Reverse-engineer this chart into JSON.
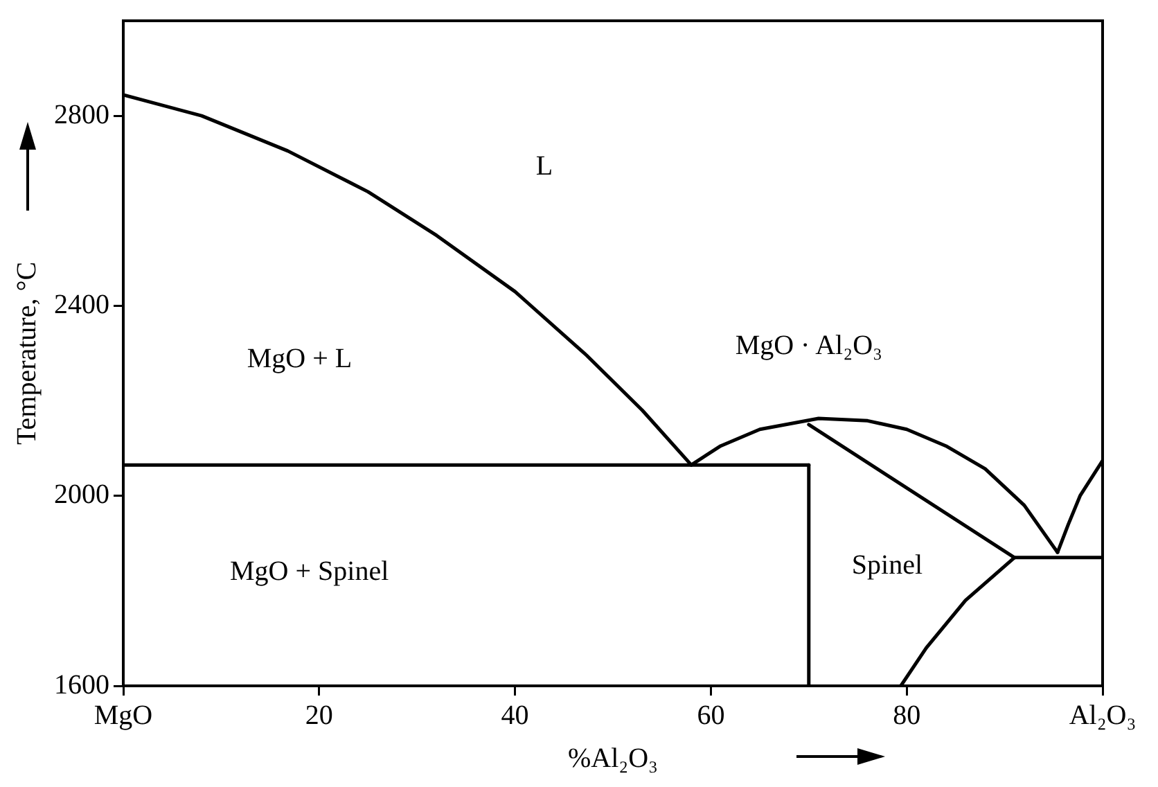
{
  "chart_data": {
    "type": "line",
    "xlabel": "%Al₂O₃",
    "ylabel": "Temperature, °C",
    "xlim": [
      0,
      100
    ],
    "ylim": [
      1600,
      3000
    ],
    "xticks": [
      {
        "value": 0,
        "label": "MgO"
      },
      20,
      40,
      60,
      80,
      {
        "value": 100,
        "label": "Al₂O₃"
      }
    ],
    "yticks": [
      1600,
      2000,
      2400,
      2800
    ],
    "grid": false,
    "legend": false,
    "marker": "none",
    "line_style": "solid",
    "series": [
      {
        "color": "#000000",
        "x": [
          0,
          8,
          16.8,
          25,
          32,
          40,
          47.3,
          53,
          58
        ],
        "values": [
          2844,
          2800,
          2726,
          2640,
          2548,
          2430,
          2296,
          2180,
          2065
        ]
      },
      {
        "color": "#000000",
        "x": [
          58,
          61,
          65,
          71,
          76,
          80,
          84,
          88,
          92,
          95.4
        ],
        "values": [
          2065,
          2105,
          2140,
          2163,
          2158,
          2140,
          2105,
          2057,
          1980,
          1881
        ]
      },
      {
        "color": "#000000",
        "x": [
          0,
          70
        ],
        "values": [
          2065,
          2065
        ]
      },
      {
        "color": "#000000",
        "x": [
          70,
          70
        ],
        "values": [
          2065,
          1600
        ]
      },
      {
        "color": "#000000",
        "x": [
          70,
          91
        ],
        "values": [
          2150,
          1870
        ]
      },
      {
        "color": "#000000",
        "x": [
          79.4,
          82,
          86,
          91
        ],
        "values": [
          1600,
          1680,
          1780,
          1870
        ]
      },
      {
        "color": "#000000",
        "x": [
          91,
          100
        ],
        "values": [
          1870,
          1870
        ]
      },
      {
        "color": "#000000",
        "x": [
          95.4,
          96.5,
          97.7,
          100
        ],
        "values": [
          1881,
          1940,
          2000,
          2074
        ]
      }
    ],
    "annotations": [
      "L",
      "MgO + L",
      "MgO · Al₂O₃",
      "MgO + Spinel",
      "Spinel"
    ]
  }
}
